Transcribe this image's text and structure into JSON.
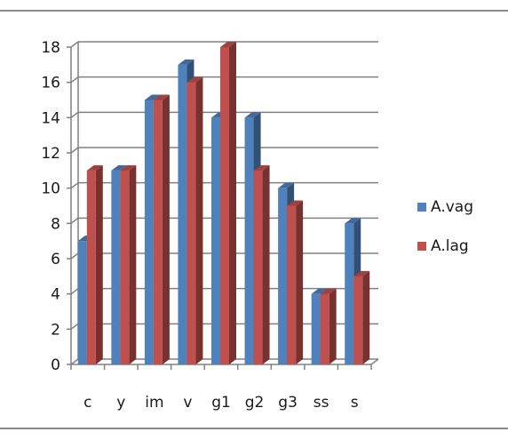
{
  "chart_data": {
    "type": "bar",
    "categories": [
      "c",
      "y",
      "im",
      "v",
      "g1",
      "g2",
      "g3",
      "ss",
      "s"
    ],
    "series": [
      {
        "name": "A.vag",
        "values": [
          7,
          11,
          15,
          17,
          14,
          14,
          10,
          4,
          8
        ],
        "color": "#4f81bd"
      },
      {
        "name": "A.lag",
        "values": [
          11,
          11,
          15,
          16,
          18,
          11,
          9,
          4,
          5
        ],
        "color": "#c0504d"
      }
    ],
    "y_ticks": [
      "0",
      "2",
      "4",
      "6",
      "8",
      "10",
      "12",
      "14",
      "16",
      "18"
    ],
    "ylim": [
      0,
      18
    ],
    "grid": true,
    "legend_position": "right",
    "style": "3d-clustered-column"
  }
}
